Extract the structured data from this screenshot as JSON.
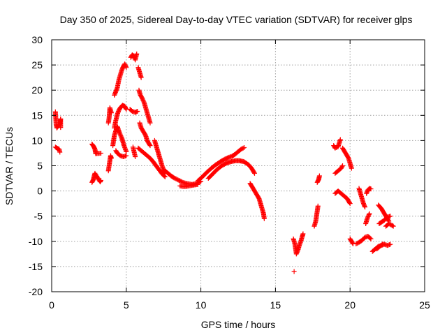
{
  "chart_data": {
    "type": "scatter",
    "title": "Day 350 of 2025, Sidereal Day-to-day VTEC variation (SDTVAR) for receiver glps",
    "xlabel": "GPS time / hours",
    "ylabel": "SDTVAR / TECUs",
    "xlim": [
      0,
      25
    ],
    "ylim": [
      -20,
      30
    ],
    "xticks": [
      0,
      5,
      10,
      15,
      20,
      25
    ],
    "yticks": [
      -20,
      -15,
      -10,
      -5,
      0,
      5,
      10,
      15,
      20,
      25,
      30
    ],
    "grid": true,
    "marker": "+",
    "color": "#ff0000",
    "series": [
      {
        "name": "SDTVAR",
        "tracks": [
          [
            [
              0.25,
              15.7
            ],
            [
              0.3,
              13.2
            ],
            [
              0.35,
              12.5
            ],
            [
              0.45,
              13.0
            ],
            [
              0.55,
              13.2
            ],
            [
              0.6,
              14.3
            ],
            [
              0.6,
              12.6
            ]
          ],
          [
            [
              0.25,
              8.7
            ],
            [
              0.35,
              8.5
            ],
            [
              0.5,
              8.3
            ],
            [
              0.55,
              7.7
            ]
          ],
          [
            [
              2.7,
              9.3
            ],
            [
              2.8,
              8.9
            ],
            [
              2.9,
              8.3
            ],
            [
              2.95,
              7.4
            ],
            [
              3.3,
              7.5
            ]
          ],
          [
            [
              2.7,
              1.7
            ],
            [
              2.8,
              2.3
            ],
            [
              2.85,
              3.0
            ],
            [
              2.9,
              3.5
            ],
            [
              3.25,
              1.8
            ],
            [
              3.3,
              2.1
            ]
          ],
          [
            [
              3.8,
              4.0
            ],
            [
              3.85,
              5.0
            ],
            [
              3.9,
              6.0
            ],
            [
              3.95,
              7.0
            ],
            [
              4.0,
              6.5
            ]
          ],
          [
            [
              3.8,
              13.5
            ],
            [
              3.85,
              14.5
            ],
            [
              3.9,
              16.5
            ],
            [
              4.0,
              15.5
            ]
          ],
          [
            [
              4.2,
              19.0
            ],
            [
              4.4,
              20.5
            ],
            [
              4.5,
              22.0
            ],
            [
              4.6,
              23.0
            ],
            [
              4.7,
              24.0
            ],
            [
              4.8,
              24.7
            ],
            [
              4.9,
              25.2
            ],
            [
              5.0,
              24.5
            ]
          ],
          [
            [
              4.2,
              12.5
            ],
            [
              4.3,
              14.0
            ],
            [
              4.4,
              15.2
            ],
            [
              4.5,
              16.0
            ],
            [
              4.6,
              16.5
            ],
            [
              4.75,
              17.0
            ],
            [
              4.9,
              16.8
            ],
            [
              5.0,
              16.2
            ]
          ],
          [
            [
              4.1,
              9.0
            ],
            [
              4.2,
              11.0
            ],
            [
              4.3,
              12.0
            ],
            [
              4.4,
              12.8
            ],
            [
              4.55,
              11.5
            ],
            [
              4.7,
              10.5
            ],
            [
              4.85,
              9.0
            ],
            [
              5.0,
              7.8
            ]
          ],
          [
            [
              4.3,
              8.0
            ],
            [
              4.4,
              7.5
            ],
            [
              4.6,
              7.0
            ],
            [
              4.8,
              6.8
            ],
            [
              5.0,
              7.0
            ]
          ],
          [
            [
              5.3,
              26.5
            ],
            [
              5.4,
              27.0
            ],
            [
              5.5,
              26.8
            ],
            [
              5.6,
              26.0
            ],
            [
              5.7,
              27.2
            ]
          ],
          [
            [
              5.25,
              16.2
            ],
            [
              5.4,
              15.8
            ],
            [
              5.6,
              15.6
            ],
            [
              5.75,
              15.8
            ]
          ],
          [
            [
              5.45,
              8.7
            ],
            [
              5.6,
              6.8
            ]
          ],
          [
            [
              5.8,
              24.5
            ],
            [
              5.9,
              23.5
            ],
            [
              6.0,
              22.5
            ]
          ],
          [
            [
              5.85,
              20.0
            ],
            [
              5.95,
              19.0
            ],
            [
              6.05,
              18.5
            ],
            [
              6.2,
              17.5
            ],
            [
              6.3,
              16.5
            ],
            [
              6.4,
              15.5
            ],
            [
              6.5,
              14.5
            ],
            [
              6.6,
              13.5
            ]
          ],
          [
            [
              5.9,
              13.5
            ],
            [
              6.0,
              12.5
            ],
            [
              6.1,
              12.0
            ],
            [
              6.2,
              11.5
            ],
            [
              6.3,
              11.0
            ],
            [
              6.4,
              10.0
            ],
            [
              6.5,
              9.5
            ],
            [
              6.6,
              9.0
            ]
          ],
          [
            [
              5.8,
              8.5
            ],
            [
              6.0,
              8.0
            ],
            [
              6.2,
              7.5
            ],
            [
              6.4,
              7.0
            ],
            [
              6.6,
              6.5
            ],
            [
              6.8,
              5.8
            ],
            [
              7.0,
              5.0
            ],
            [
              7.2,
              4.2
            ],
            [
              7.4,
              3.4
            ],
            [
              7.6,
              2.8
            ]
          ],
          [
            [
              6.9,
              10.0
            ],
            [
              7.0,
              9.0
            ],
            [
              7.1,
              8.0
            ],
            [
              7.2,
              7.0
            ],
            [
              7.3,
              6.0
            ],
            [
              7.4,
              5.0
            ],
            [
              7.5,
              4.2
            ],
            [
              7.6,
              3.6
            ]
          ],
          [
            [
              7.6,
              4.0
            ],
            [
              7.8,
              3.5
            ],
            [
              8.0,
              3.0
            ],
            [
              8.2,
              2.6
            ],
            [
              8.4,
              2.3
            ],
            [
              8.6,
              2.0
            ],
            [
              8.8,
              1.7
            ],
            [
              9.0,
              1.5
            ],
            [
              9.2,
              1.4
            ],
            [
              9.4,
              1.3
            ],
            [
              9.6,
              1.4
            ],
            [
              9.8,
              1.6
            ],
            [
              10.0,
              1.9
            ]
          ],
          [
            [
              8.6,
              1.0
            ],
            [
              8.8,
              0.9
            ],
            [
              9.0,
              0.9
            ],
            [
              9.2,
              1.0
            ],
            [
              9.4,
              1.1
            ],
            [
              9.6,
              1.2
            ],
            [
              9.8,
              1.3
            ]
          ],
          [
            [
              9.8,
              2.0
            ],
            [
              10.1,
              2.8
            ],
            [
              10.4,
              3.7
            ],
            [
              10.7,
              4.5
            ],
            [
              11.0,
              5.2
            ],
            [
              11.3,
              5.8
            ],
            [
              11.6,
              6.3
            ],
            [
              11.9,
              6.7
            ],
            [
              12.1,
              6.9
            ],
            [
              12.3,
              7.3
            ],
            [
              12.5,
              7.8
            ],
            [
              12.7,
              8.3
            ],
            [
              12.9,
              8.6
            ]
          ],
          [
            [
              10.5,
              2.5
            ],
            [
              10.8,
              3.4
            ],
            [
              11.1,
              4.3
            ],
            [
              11.4,
              5.0
            ],
            [
              11.7,
              5.5
            ],
            [
              12.0,
              5.8
            ],
            [
              12.3,
              6.0
            ],
            [
              12.6,
              6.0
            ],
            [
              12.9,
              5.8
            ],
            [
              13.2,
              5.2
            ],
            [
              13.4,
              4.5
            ],
            [
              13.6,
              3.5
            ]
          ],
          [
            [
              13.3,
              1.5
            ],
            [
              13.5,
              0.5
            ],
            [
              13.7,
              -0.5
            ],
            [
              13.9,
              -1.5
            ],
            [
              14.0,
              -2.5
            ],
            [
              14.1,
              -3.5
            ],
            [
              14.2,
              -4.5
            ],
            [
              14.25,
              -5.5
            ]
          ],
          [
            [
              16.2,
              -9.5
            ],
            [
              16.3,
              -10.5
            ],
            [
              16.35,
              -11.5
            ],
            [
              16.4,
              -12.5
            ],
            [
              16.5,
              -11.8
            ],
            [
              16.6,
              -10.8
            ],
            [
              16.7,
              -10.0
            ],
            [
              16.8,
              -9.0
            ],
            [
              16.85,
              -8.5
            ]
          ],
          [
            [
              16.25,
              -16.0
            ]
          ],
          [
            [
              17.6,
              -7.0
            ],
            [
              17.7,
              -6.0
            ],
            [
              17.75,
              -5.0
            ],
            [
              17.8,
              -4.0
            ],
            [
              17.85,
              -3.0
            ]
          ],
          [
            [
              17.8,
              1.7
            ],
            [
              17.9,
              2.3
            ],
            [
              17.95,
              3.0
            ]
          ],
          [
            [
              18.9,
              9.0
            ],
            [
              19.0,
              8.5
            ],
            [
              19.2,
              8.8
            ],
            [
              19.35,
              10.2
            ]
          ],
          [
            [
              19.0,
              3.5
            ],
            [
              19.2,
              4.0
            ],
            [
              19.4,
              4.5
            ],
            [
              19.5,
              5.0
            ]
          ],
          [
            [
              19.0,
              -0.5
            ],
            [
              19.2,
              0.0
            ],
            [
              19.4,
              -0.5
            ],
            [
              19.6,
              -1.0
            ],
            [
              19.8,
              -1.5
            ],
            [
              20.0,
              -2.5
            ]
          ],
          [
            [
              19.5,
              8.5
            ],
            [
              19.7,
              7.5
            ],
            [
              19.9,
              6.5
            ],
            [
              20.0,
              5.5
            ],
            [
              20.1,
              4.5
            ]
          ],
          [
            [
              20.0,
              -9.5
            ],
            [
              20.2,
              -10.5
            ]
          ],
          [
            [
              20.4,
              -10.5
            ],
            [
              20.6,
              -10.2
            ],
            [
              20.8,
              -9.8
            ],
            [
              21.0,
              -9.2
            ],
            [
              21.2,
              -9.0
            ],
            [
              21.4,
              -9.5
            ]
          ],
          [
            [
              20.6,
              0.5
            ],
            [
              20.7,
              -0.5
            ],
            [
              20.8,
              -1.5
            ],
            [
              20.9,
              -2.5
            ],
            [
              21.0,
              -3.2
            ]
          ],
          [
            [
              21.1,
              -0.5
            ],
            [
              21.2,
              0.2
            ],
            [
              21.3,
              0.5
            ],
            [
              21.4,
              0.4
            ]
          ],
          [
            [
              21.05,
              -6.5
            ],
            [
              21.15,
              -5.5
            ],
            [
              21.3,
              -4.5
            ]
          ],
          [
            [
              21.5,
              -12.0
            ],
            [
              21.7,
              -11.5
            ],
            [
              21.9,
              -11.0
            ],
            [
              22.1,
              -10.8
            ],
            [
              22.3,
              -10.6
            ],
            [
              22.5,
              -10.8
            ],
            [
              22.7,
              -10.6
            ]
          ],
          [
            [
              21.8,
              -11.5
            ],
            [
              22.0,
              -11.0
            ],
            [
              22.2,
              -10.5
            ]
          ],
          [
            [
              21.9,
              -2.8
            ],
            [
              22.1,
              -3.5
            ],
            [
              22.3,
              -4.5
            ],
            [
              22.5,
              -5.5
            ],
            [
              22.6,
              -6.0
            ]
          ],
          [
            [
              21.95,
              -6.5
            ],
            [
              22.1,
              -6.2
            ],
            [
              22.3,
              -5.8
            ],
            [
              22.5,
              -5.2
            ],
            [
              22.7,
              -5.0
            ]
          ],
          [
            [
              22.4,
              -7.0
            ],
            [
              22.6,
              -6.5
            ],
            [
              22.8,
              -6.8
            ],
            [
              22.9,
              -7.0
            ]
          ]
        ]
      }
    ]
  }
}
